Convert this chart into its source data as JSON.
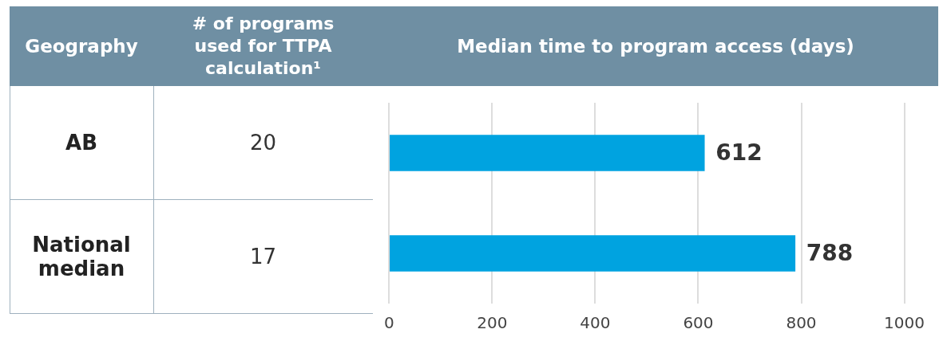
{
  "chart_data": [
    {
      "type": "other",
      "title": "# of programs used for TTPA calculation¹",
      "ylabel": "Geography",
      "categories": [
        "AB",
        "National median"
      ],
      "values": [
        20,
        17
      ],
      "data_labels": true
    },
    {
      "type": "bar",
      "orientation": "horizontal",
      "title": "Median time to program access (days)",
      "categories": [
        null,
        null
      ],
      "values": [
        612,
        788
      ],
      "color": "#00a3e0",
      "xlim": [
        0,
        1000
      ],
      "xticks": [
        0,
        200,
        400,
        600,
        800,
        1000
      ],
      "grid": "x",
      "tick_labels": "x",
      "data_labels": true
    }
  ]
}
